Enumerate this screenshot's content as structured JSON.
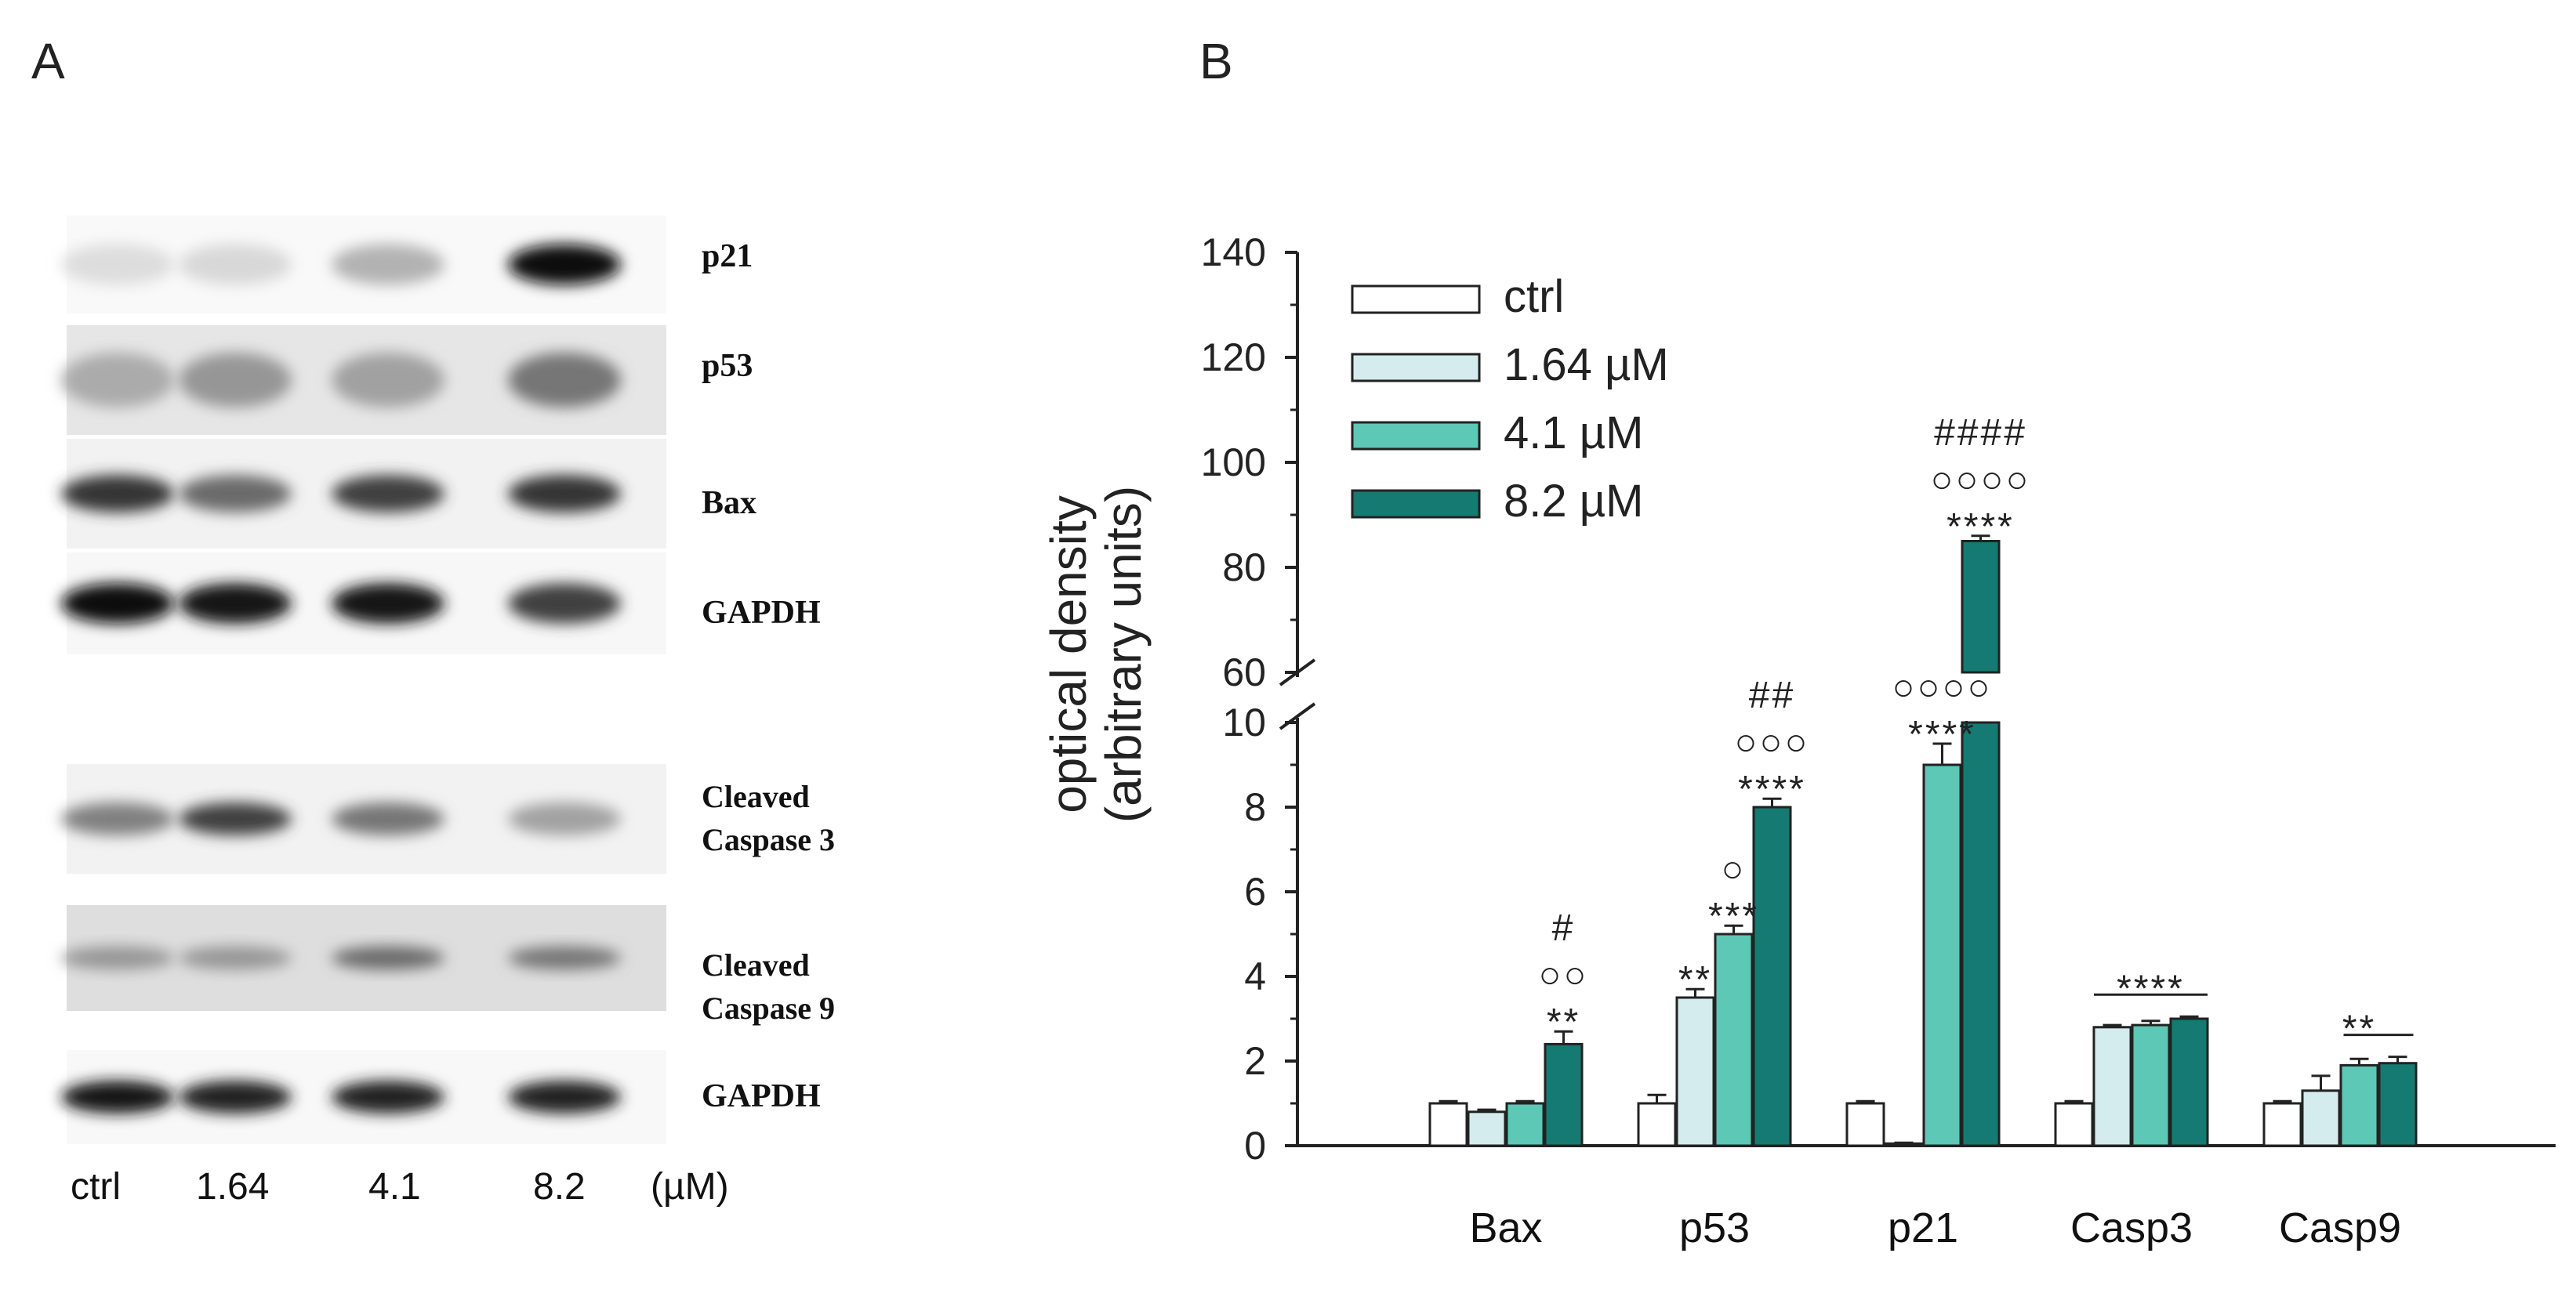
{
  "panel_a": {
    "label": "A",
    "blots": [
      {
        "label": "p21",
        "intensity": [
          0.02,
          0.04,
          0.22,
          1.0
        ]
      },
      {
        "label": "p53",
        "intensity": [
          0.25,
          0.35,
          0.3,
          0.5
        ]
      },
      {
        "label": "Bax",
        "intensity": [
          0.8,
          0.55,
          0.75,
          0.8
        ]
      },
      {
        "label": "GAPDH",
        "intensity": [
          1.0,
          0.95,
          0.95,
          0.75
        ]
      },
      {
        "label": "Cleaved Caspase 3",
        "intensity": [
          0.45,
          0.75,
          0.5,
          0.3
        ]
      },
      {
        "label": "Cleaved Caspase 9",
        "intensity": [
          0.35,
          0.35,
          0.55,
          0.5
        ]
      },
      {
        "label": "GAPDH",
        "intensity": [
          0.95,
          0.9,
          0.9,
          0.9
        ]
      }
    ],
    "lanes": [
      "ctrl",
      "1.64",
      "4.1",
      "8.2"
    ],
    "unit": "(µM)"
  },
  "panel_b": {
    "label": "B",
    "chart_data": {
      "type": "bar",
      "ylabel": "optical density (arbitrary units)",
      "ylabel_line1": "optical density",
      "ylabel_line2": "(arbitrary units)",
      "axis_break": {
        "lower_range": [
          0,
          10
        ],
        "upper_range": [
          60,
          140
        ]
      },
      "lower_ticks": [
        0,
        2,
        4,
        6,
        8,
        10
      ],
      "upper_ticks": [
        60,
        80,
        100,
        120,
        140
      ],
      "categories": [
        "Bax",
        "p53",
        "p21",
        "Casp3",
        "Casp9"
      ],
      "series": [
        {
          "name": "ctrl",
          "color": "#ffffff",
          "values": [
            1.0,
            1.0,
            1.0,
            1.0,
            1.0
          ],
          "errors": [
            0.05,
            0.2,
            0.05,
            0.05,
            0.05
          ]
        },
        {
          "name": "1.64 µM",
          "color": "#d5ecee",
          "values": [
            0.8,
            3.5,
            0.05,
            2.8,
            1.3
          ],
          "errors": [
            0.05,
            0.2,
            0.02,
            0.05,
            0.35
          ]
        },
        {
          "name": "4.1 µM",
          "color": "#5cc8b5",
          "values": [
            1.0,
            5.0,
            9.0,
            2.85,
            1.9
          ],
          "errors": [
            0.05,
            0.2,
            0.5,
            0.1,
            0.15
          ]
        },
        {
          "name": "8.2 µM",
          "color": "#157a72",
          "values": [
            2.4,
            8.0,
            85.0,
            3.0,
            1.95
          ],
          "errors": [
            0.3,
            0.2,
            1.0,
            0.05,
            0.15
          ]
        }
      ],
      "legend_position": "top-left",
      "annotations": [
        {
          "category": "Bax",
          "series": 3,
          "lines": [
            "#",
            "○○",
            "**"
          ]
        },
        {
          "category": "p53",
          "series": 1,
          "lines": [
            "**"
          ]
        },
        {
          "category": "p53",
          "series": 2,
          "lines": [
            "○",
            "***"
          ]
        },
        {
          "category": "p53",
          "series": 3,
          "lines": [
            "##",
            "○○○",
            "****"
          ]
        },
        {
          "category": "p21",
          "series": 2,
          "lines": [
            "○○○○",
            "****"
          ]
        },
        {
          "category": "p21",
          "series": 3,
          "lines": [
            "####",
            "○○○○",
            "****"
          ]
        },
        {
          "category": "Casp3",
          "series": "group",
          "lines": [
            "****"
          ]
        },
        {
          "category": "Casp9",
          "series": "group",
          "lines": [
            "**"
          ]
        }
      ]
    }
  }
}
